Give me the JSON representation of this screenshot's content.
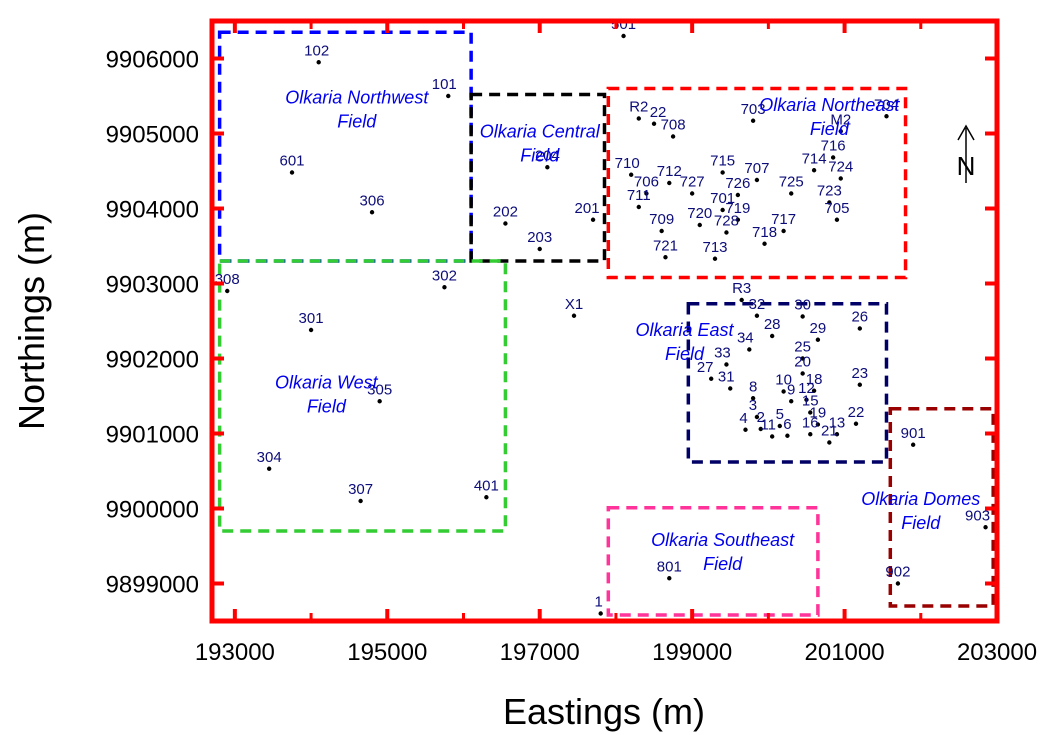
{
  "chart_data": {
    "type": "scatter",
    "xlabel": "Eastings (m)",
    "ylabel": "Northings (m)",
    "xlim": [
      192700,
      203000
    ],
    "ylim": [
      9898500,
      9906500
    ],
    "x_ticks": [
      193000,
      195000,
      197000,
      199000,
      201000,
      203000
    ],
    "y_ticks": [
      9899000,
      9900000,
      9901000,
      9902000,
      9903000,
      9904000,
      9905000,
      9906000
    ],
    "frame_color": "#ff0000",
    "point_color": "#000000",
    "label_color": "#0d0d7a",
    "field_label_color": "#0000ee",
    "north_arrow": {
      "letter": "N",
      "icon": "north-arrow-icon"
    },
    "fields": [
      {
        "name": "Olkaria Northwest",
        "label_lines": [
          "Olkaria Northwest",
          "Field"
        ],
        "label_at": [
          194600,
          9905400
        ],
        "color": "#0000ff",
        "x": [
          192800,
          196100
        ],
        "y": [
          9903300,
          9906350
        ]
      },
      {
        "name": "Olkaria Central",
        "label_lines": [
          "Olkaria Central",
          "Field"
        ],
        "label_at": [
          197000,
          9904950
        ],
        "color": "#000000",
        "x": [
          196100,
          197850
        ],
        "y": [
          9903300,
          9905520
        ]
      },
      {
        "name": "Olkaria Northeast",
        "label_lines": [
          "Olkaria Northeast",
          "Field"
        ],
        "label_at": [
          200800,
          9905300
        ],
        "color": "#ff0000",
        "x": [
          197900,
          201800
        ],
        "y": [
          9903080,
          9905600
        ]
      },
      {
        "name": "Olkaria West",
        "label_lines": [
          "Olkaria West",
          "Field"
        ],
        "label_at": [
          194200,
          9901600
        ],
        "color": "#33cc33",
        "x": [
          192800,
          196550
        ],
        "y": [
          9899700,
          9903300
        ]
      },
      {
        "name": "Olkaria East",
        "label_lines": [
          "Olkaria East",
          "Field"
        ],
        "label_at": [
          198900,
          9902300
        ],
        "color": "#000066",
        "x": [
          198950,
          201550
        ],
        "y": [
          9900620,
          9902730
        ]
      },
      {
        "name": "Olkaria Domes",
        "label_lines": [
          "Olkaria Domes",
          "Field"
        ],
        "label_at": [
          202000,
          9900050
        ],
        "color": "#990000",
        "x": [
          201600,
          202950
        ],
        "y": [
          9898700,
          9901330
        ]
      },
      {
        "name": "Olkaria Southeast",
        "label_lines": [
          "Olkaria Southeast",
          "Field"
        ],
        "label_at": [
          199400,
          9899500
        ],
        "color": "#ff3399",
        "x": [
          197900,
          200650
        ],
        "y": [
          9898580,
          9900010
        ]
      }
    ],
    "wells": [
      {
        "label": "102",
        "x": 194100,
        "y": 9905950,
        "dx": -2,
        "dy": -7
      },
      {
        "label": "101",
        "x": 195800,
        "y": 9905500,
        "dx": -4,
        "dy": -7
      },
      {
        "label": "601",
        "x": 193750,
        "y": 9904480,
        "dx": 0,
        "dy": -7
      },
      {
        "label": "306",
        "x": 194800,
        "y": 9903950,
        "dx": 0,
        "dy": -7
      },
      {
        "label": "501",
        "x": 198100,
        "y": 9906300,
        "dx": 0,
        "dy": -7
      },
      {
        "label": "204",
        "x": 197100,
        "y": 9904550,
        "dx": 0,
        "dy": -7
      },
      {
        "label": "202",
        "x": 196550,
        "y": 9903800,
        "dx": 0,
        "dy": -7
      },
      {
        "label": "203",
        "x": 197000,
        "y": 9903460,
        "dx": 0,
        "dy": -7
      },
      {
        "label": "201",
        "x": 197700,
        "y": 9903850,
        "dx": -6,
        "dy": -7
      },
      {
        "label": "308",
        "x": 192900,
        "y": 9902900,
        "dx": 0,
        "dy": -7
      },
      {
        "label": "302",
        "x": 195750,
        "y": 9902950,
        "dx": 0,
        "dy": -7
      },
      {
        "label": "301",
        "x": 194000,
        "y": 9902380,
        "dx": 0,
        "dy": -7
      },
      {
        "label": "305",
        "x": 194900,
        "y": 9901430,
        "dx": 0,
        "dy": -7
      },
      {
        "label": "304",
        "x": 193450,
        "y": 9900530,
        "dx": 0,
        "dy": -7
      },
      {
        "label": "307",
        "x": 194650,
        "y": 9900100,
        "dx": 0,
        "dy": -7
      },
      {
        "label": "401",
        "x": 196300,
        "y": 9900150,
        "dx": 0,
        "dy": -7
      },
      {
        "label": "X1",
        "x": 197450,
        "y": 9902570,
        "dx": 0,
        "dy": -7
      },
      {
        "label": "R2",
        "x": 198300,
        "y": 9905200,
        "dx": 0,
        "dy": -7
      },
      {
        "label": "22",
        "x": 198500,
        "y": 9905130,
        "dx": 4,
        "dy": -7
      },
      {
        "label": "708",
        "x": 198750,
        "y": 9904960,
        "dx": 0,
        "dy": -7
      },
      {
        "label": "703",
        "x": 199800,
        "y": 9905170,
        "dx": 0,
        "dy": -7
      },
      {
        "label": "704",
        "x": 201550,
        "y": 9905230,
        "dx": 0,
        "dy": -7
      },
      {
        "label": "M2",
        "x": 200950,
        "y": 9905030,
        "dx": 0,
        "dy": -7
      },
      {
        "label": "716",
        "x": 200850,
        "y": 9904680,
        "dx": 0,
        "dy": -7
      },
      {
        "label": "710",
        "x": 198200,
        "y": 9904450,
        "dx": -4,
        "dy": -7
      },
      {
        "label": "712",
        "x": 198700,
        "y": 9904340,
        "dx": 0,
        "dy": -7
      },
      {
        "label": "715",
        "x": 199400,
        "y": 9904480,
        "dx": 0,
        "dy": -7
      },
      {
        "label": "707",
        "x": 199850,
        "y": 9904380,
        "dx": 0,
        "dy": -7
      },
      {
        "label": "714",
        "x": 200600,
        "y": 9904510,
        "dx": 0,
        "dy": -7
      },
      {
        "label": "724",
        "x": 200950,
        "y": 9904400,
        "dx": 0,
        "dy": -7
      },
      {
        "label": "706",
        "x": 198400,
        "y": 9904200,
        "dx": 0,
        "dy": -7
      },
      {
        "label": "727",
        "x": 199000,
        "y": 9904200,
        "dx": 0,
        "dy": -7
      },
      {
        "label": "726",
        "x": 199600,
        "y": 9904180,
        "dx": 0,
        "dy": -7
      },
      {
        "label": "725",
        "x": 200300,
        "y": 9904200,
        "dx": 0,
        "dy": -7
      },
      {
        "label": "723",
        "x": 200800,
        "y": 9904080,
        "dx": 0,
        "dy": -7
      },
      {
        "label": "711",
        "x": 198300,
        "y": 9904020,
        "dx": 0,
        "dy": -7
      },
      {
        "label": "701",
        "x": 199400,
        "y": 9903980,
        "dx": 0,
        "dy": -7
      },
      {
        "label": "709",
        "x": 198600,
        "y": 9903700,
        "dx": 0,
        "dy": -7
      },
      {
        "label": "720",
        "x": 199100,
        "y": 9903780,
        "dx": 0,
        "dy": -7
      },
      {
        "label": "719",
        "x": 199600,
        "y": 9903850,
        "dx": 0,
        "dy": -7
      },
      {
        "label": "728",
        "x": 199450,
        "y": 9903680,
        "dx": 0,
        "dy": -7
      },
      {
        "label": "717",
        "x": 200200,
        "y": 9903700,
        "dx": 0,
        "dy": -7
      },
      {
        "label": "718",
        "x": 199950,
        "y": 9903530,
        "dx": 0,
        "dy": -7
      },
      {
        "label": "705",
        "x": 200900,
        "y": 9903850,
        "dx": 0,
        "dy": -7
      },
      {
        "label": "721",
        "x": 198650,
        "y": 9903350,
        "dx": 0,
        "dy": -7
      },
      {
        "label": "713",
        "x": 199300,
        "y": 9903330,
        "dx": 0,
        "dy": -7
      },
      {
        "label": "R3",
        "x": 199650,
        "y": 9902780,
        "dx": 0,
        "dy": -7
      },
      {
        "label": "32",
        "x": 199850,
        "y": 9902570,
        "dx": 0,
        "dy": -7
      },
      {
        "label": "30",
        "x": 200450,
        "y": 9902560,
        "dx": 0,
        "dy": -7
      },
      {
        "label": "28",
        "x": 200050,
        "y": 9902300,
        "dx": 0,
        "dy": -7
      },
      {
        "label": "29",
        "x": 200650,
        "y": 9902250,
        "dx": 0,
        "dy": -7
      },
      {
        "label": "26",
        "x": 201200,
        "y": 9902400,
        "dx": 0,
        "dy": -7
      },
      {
        "label": "34",
        "x": 199750,
        "y": 9902120,
        "dx": -4,
        "dy": -7
      },
      {
        "label": "25",
        "x": 200450,
        "y": 9902000,
        "dx": 0,
        "dy": -7
      },
      {
        "label": "33",
        "x": 199450,
        "y": 9901920,
        "dx": -4,
        "dy": -7
      },
      {
        "label": "20",
        "x": 200450,
        "y": 9901800,
        "dx": 0,
        "dy": -7
      },
      {
        "label": "27",
        "x": 199250,
        "y": 9901730,
        "dx": -6,
        "dy": -7
      },
      {
        "label": "31",
        "x": 199500,
        "y": 9901600,
        "dx": -4,
        "dy": -7
      },
      {
        "label": "18",
        "x": 200600,
        "y": 9901570,
        "dx": 0,
        "dy": -7
      },
      {
        "label": "23",
        "x": 201200,
        "y": 9901650,
        "dx": 0,
        "dy": -7
      },
      {
        "label": "10",
        "x": 200200,
        "y": 9901560,
        "dx": 0,
        "dy": -7
      },
      {
        "label": "8",
        "x": 199800,
        "y": 9901470,
        "dx": 0,
        "dy": -7
      },
      {
        "label": "9",
        "x": 200300,
        "y": 9901430,
        "dx": 0,
        "dy": -7
      },
      {
        "label": "12",
        "x": 200500,
        "y": 9901450,
        "dx": 0,
        "dy": -7
      },
      {
        "label": "3",
        "x": 199850,
        "y": 9901220,
        "dx": -4,
        "dy": -7
      },
      {
        "label": "15",
        "x": 200550,
        "y": 9901280,
        "dx": 0,
        "dy": -7
      },
      {
        "label": "19",
        "x": 200650,
        "y": 9901120,
        "dx": 0,
        "dy": -7
      },
      {
        "label": "22",
        "x": 201150,
        "y": 9901130,
        "dx": 0,
        "dy": -7
      },
      {
        "label": "4",
        "x": 199700,
        "y": 9901050,
        "dx": -2,
        "dy": -7
      },
      {
        "label": "2",
        "x": 199900,
        "y": 9901060,
        "dx": 0,
        "dy": -7
      },
      {
        "label": "5",
        "x": 200150,
        "y": 9901100,
        "dx": 0,
        "dy": -7
      },
      {
        "label": "13",
        "x": 200900,
        "y": 9900990,
        "dx": 0,
        "dy": -7
      },
      {
        "label": "6",
        "x": 200250,
        "y": 9900970,
        "dx": 0,
        "dy": -7
      },
      {
        "label": "16",
        "x": 200550,
        "y": 9900990,
        "dx": 0,
        "dy": -7
      },
      {
        "label": "11",
        "x": 200050,
        "y": 9900960,
        "dx": -4,
        "dy": -7
      },
      {
        "label": "21",
        "x": 200800,
        "y": 9900880,
        "dx": 0,
        "dy": -7
      },
      {
        "label": "901",
        "x": 201900,
        "y": 9900850,
        "dx": 0,
        "dy": -7
      },
      {
        "label": "903",
        "x": 202850,
        "y": 9899750,
        "dx": -8,
        "dy": -7
      },
      {
        "label": "902",
        "x": 201700,
        "y": 9899000,
        "dx": 0,
        "dy": -7
      },
      {
        "label": "801",
        "x": 198700,
        "y": 9899070,
        "dx": 0,
        "dy": -7
      },
      {
        "label": "1",
        "x": 197800,
        "y": 9898600,
        "dx": -2,
        "dy": -7
      }
    ]
  }
}
